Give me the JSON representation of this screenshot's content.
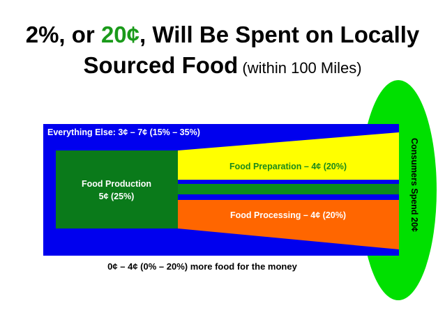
{
  "title": {
    "part1": "2%, or ",
    "highlight": "20¢",
    "part2": ", Will Be Spent on Locally",
    "line2": "Sourced Food",
    "line2_small": " (within 100 Miles)"
  },
  "diagram": {
    "everything_else": "Everything Else: 3¢ – 7¢ (15% – 35%)",
    "production_line1": "Food Production",
    "production_line2": "5¢ (25%)",
    "preparation": "Food Preparation – 4¢ (20%)",
    "processing": "Food Processing – 4¢ (20%)",
    "consumers": "Consumers Spend 20¢",
    "footnote": "0¢ – 4¢ (0% – 20%) more food for the money"
  },
  "colors": {
    "blue": "#0000ee",
    "green_dark": "#0a7a1a",
    "green_mid": "#0c8a1c",
    "yellow": "#ffff00",
    "orange": "#ff6600",
    "ellipse": "#00e000",
    "title_green": "#1a9a1a"
  }
}
